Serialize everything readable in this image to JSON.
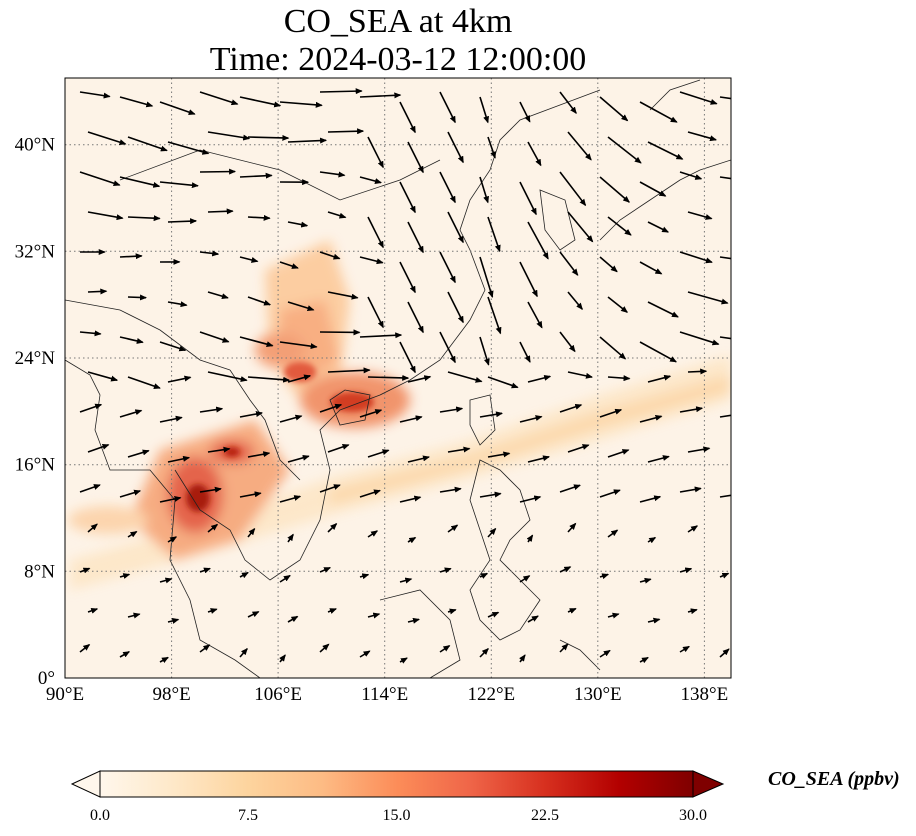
{
  "title": "CO_SEA at 4km",
  "subtitle": "Time: 2024-03-12 12:00:00",
  "colorbar": {
    "label": "CO_SEA (ppbv)",
    "ticks": [
      "0.0",
      "7.5",
      "15.0",
      "22.5",
      "30.0"
    ],
    "range": [
      0,
      30
    ],
    "colormap": "OrRd",
    "extend": "both",
    "colors": [
      "#fff7ec",
      "#fee8c8",
      "#fdd49e",
      "#fdbb84",
      "#fc8d59",
      "#ef6548",
      "#d7301f",
      "#b30000",
      "#7f0000"
    ]
  },
  "map": {
    "lon_range": [
      90,
      140
    ],
    "lat_range": [
      0,
      45
    ],
    "lon_ticks": [
      "90°E",
      "98°E",
      "106°E",
      "114°E",
      "122°E",
      "130°E",
      "138°E"
    ],
    "lat_ticks": [
      "0°",
      "8°N",
      "16°N",
      "24°N",
      "32°N",
      "40°N"
    ],
    "grid": "dotted",
    "coastlines": true,
    "wind_vectors": true
  }
}
